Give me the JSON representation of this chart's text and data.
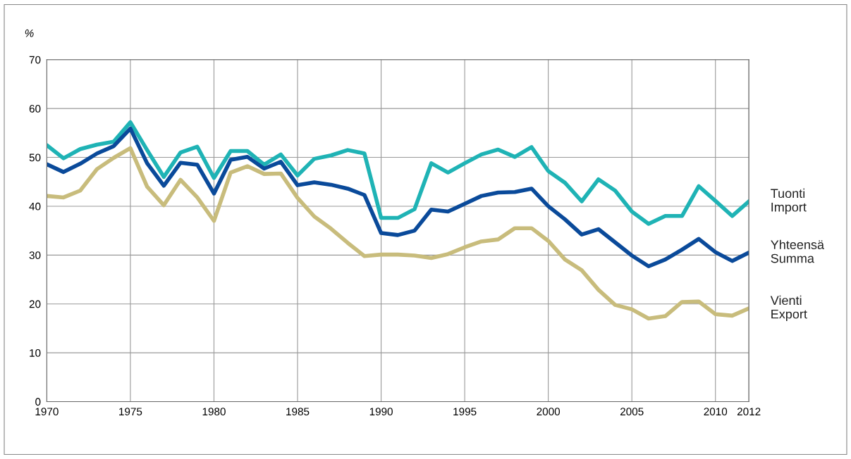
{
  "chart_data": {
    "type": "line",
    "ylabel": "%",
    "x": [
      1970,
      1971,
      1972,
      1973,
      1974,
      1975,
      1976,
      1977,
      1978,
      1979,
      1980,
      1981,
      1982,
      1983,
      1984,
      1985,
      1986,
      1987,
      1988,
      1989,
      1990,
      1991,
      1992,
      1993,
      1994,
      1995,
      1996,
      1997,
      1998,
      1999,
      2000,
      2001,
      2002,
      2003,
      2004,
      2005,
      2006,
      2007,
      2008,
      2009,
      2010,
      2011,
      2012
    ],
    "series": [
      {
        "name": "Tuonti\nImport",
        "color": "#1fb3b5",
        "values": [
          52.5,
          49.8,
          51.7,
          52.6,
          53.2,
          57.2,
          51.5,
          46.0,
          51.0,
          52.2,
          45.8,
          51.3,
          51.3,
          48.5,
          50.6,
          46.3,
          49.7,
          50.4,
          51.5,
          50.8,
          37.6,
          37.6,
          39.4,
          48.8,
          46.9,
          48.8,
          50.6,
          51.6,
          50.1,
          52.1,
          47.2,
          44.8,
          41.0,
          45.5,
          43.2,
          38.9,
          36.4,
          38.0,
          38.0,
          44.1,
          41.1,
          38.0,
          41.0
        ]
      },
      {
        "name": "Yhteensä\nSumma",
        "color": "#0a4a9a",
        "values": [
          48.6,
          47.0,
          48.7,
          50.8,
          52.3,
          55.9,
          48.8,
          44.2,
          48.9,
          48.5,
          42.6,
          49.5,
          50.1,
          47.7,
          49.1,
          44.3,
          44.9,
          44.4,
          43.6,
          42.3,
          34.5,
          34.1,
          35.0,
          39.3,
          38.9,
          40.5,
          42.1,
          42.8,
          42.9,
          43.6,
          40.0,
          37.3,
          34.2,
          35.3,
          32.6,
          29.9,
          27.7,
          29.1,
          31.1,
          33.3,
          30.6,
          28.8,
          30.5
        ]
      },
      {
        "name": "Vienti\nExport",
        "color": "#c8bc7c",
        "values": [
          42.1,
          41.8,
          43.2,
          47.6,
          49.9,
          51.9,
          44.0,
          40.2,
          45.4,
          41.8,
          37.0,
          46.9,
          48.2,
          46.6,
          46.7,
          41.7,
          37.9,
          35.4,
          32.5,
          29.8,
          30.1,
          30.1,
          29.9,
          29.4,
          30.2,
          31.6,
          32.8,
          33.2,
          35.5,
          35.5,
          32.9,
          29.1,
          26.9,
          22.9,
          19.8,
          18.9,
          17.0,
          17.5,
          20.4,
          20.5,
          17.9,
          17.6,
          19.1
        ]
      }
    ],
    "xlim": [
      1970,
      2012
    ],
    "xticks": [
      1970,
      1975,
      1980,
      1985,
      1990,
      1995,
      2000,
      2005,
      2010,
      2012
    ],
    "ylim": [
      0,
      70
    ],
    "yticks": [
      0,
      10,
      20,
      30,
      40,
      50,
      60,
      70
    ],
    "grid": true,
    "legend": false,
    "marker": "none",
    "line_style": "solid"
  }
}
